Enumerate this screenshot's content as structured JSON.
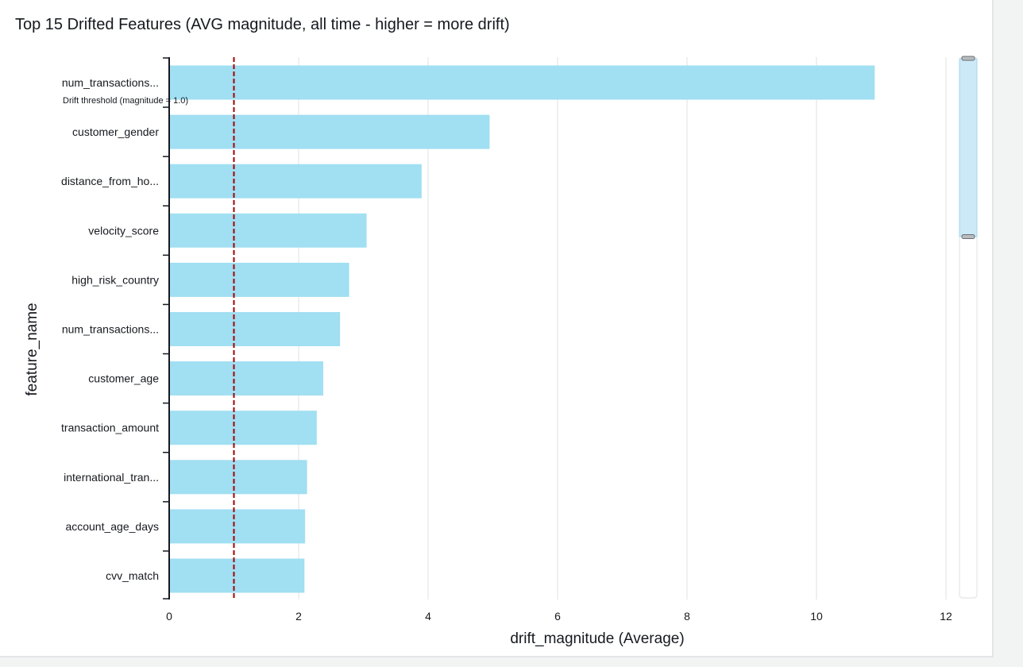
{
  "chart_data": {
    "type": "bar",
    "orientation": "horizontal",
    "title": "Top 15 Drifted Features (AVG magnitude, all time - higher = more drift)",
    "xlabel": "drift_magnitude (Average)",
    "ylabel": "feature_name",
    "xlim": [
      0,
      12
    ],
    "xticks": [
      "0",
      "2",
      "4",
      "6",
      "8",
      "10",
      "12"
    ],
    "grid": true,
    "bar_color": "#a1dff2",
    "categories": [
      "num_transactions...",
      "customer_gender",
      "distance_from_ho...",
      "velocity_score",
      "high_risk_country",
      "num_transactions...",
      "customer_age",
      "transaction_amount",
      "international_tran...",
      "account_age_days",
      "cvv_match"
    ],
    "values": [
      10.9,
      4.95,
      3.9,
      3.05,
      2.78,
      2.64,
      2.38,
      2.28,
      2.13,
      2.1,
      2.09
    ],
    "reference_line": {
      "value": 1.0,
      "label": "Drift threshold (magnitude = 1.0)",
      "color": "#a30000",
      "style": "dashed"
    },
    "scrollbar_thumb_color": "#cce9f7"
  }
}
